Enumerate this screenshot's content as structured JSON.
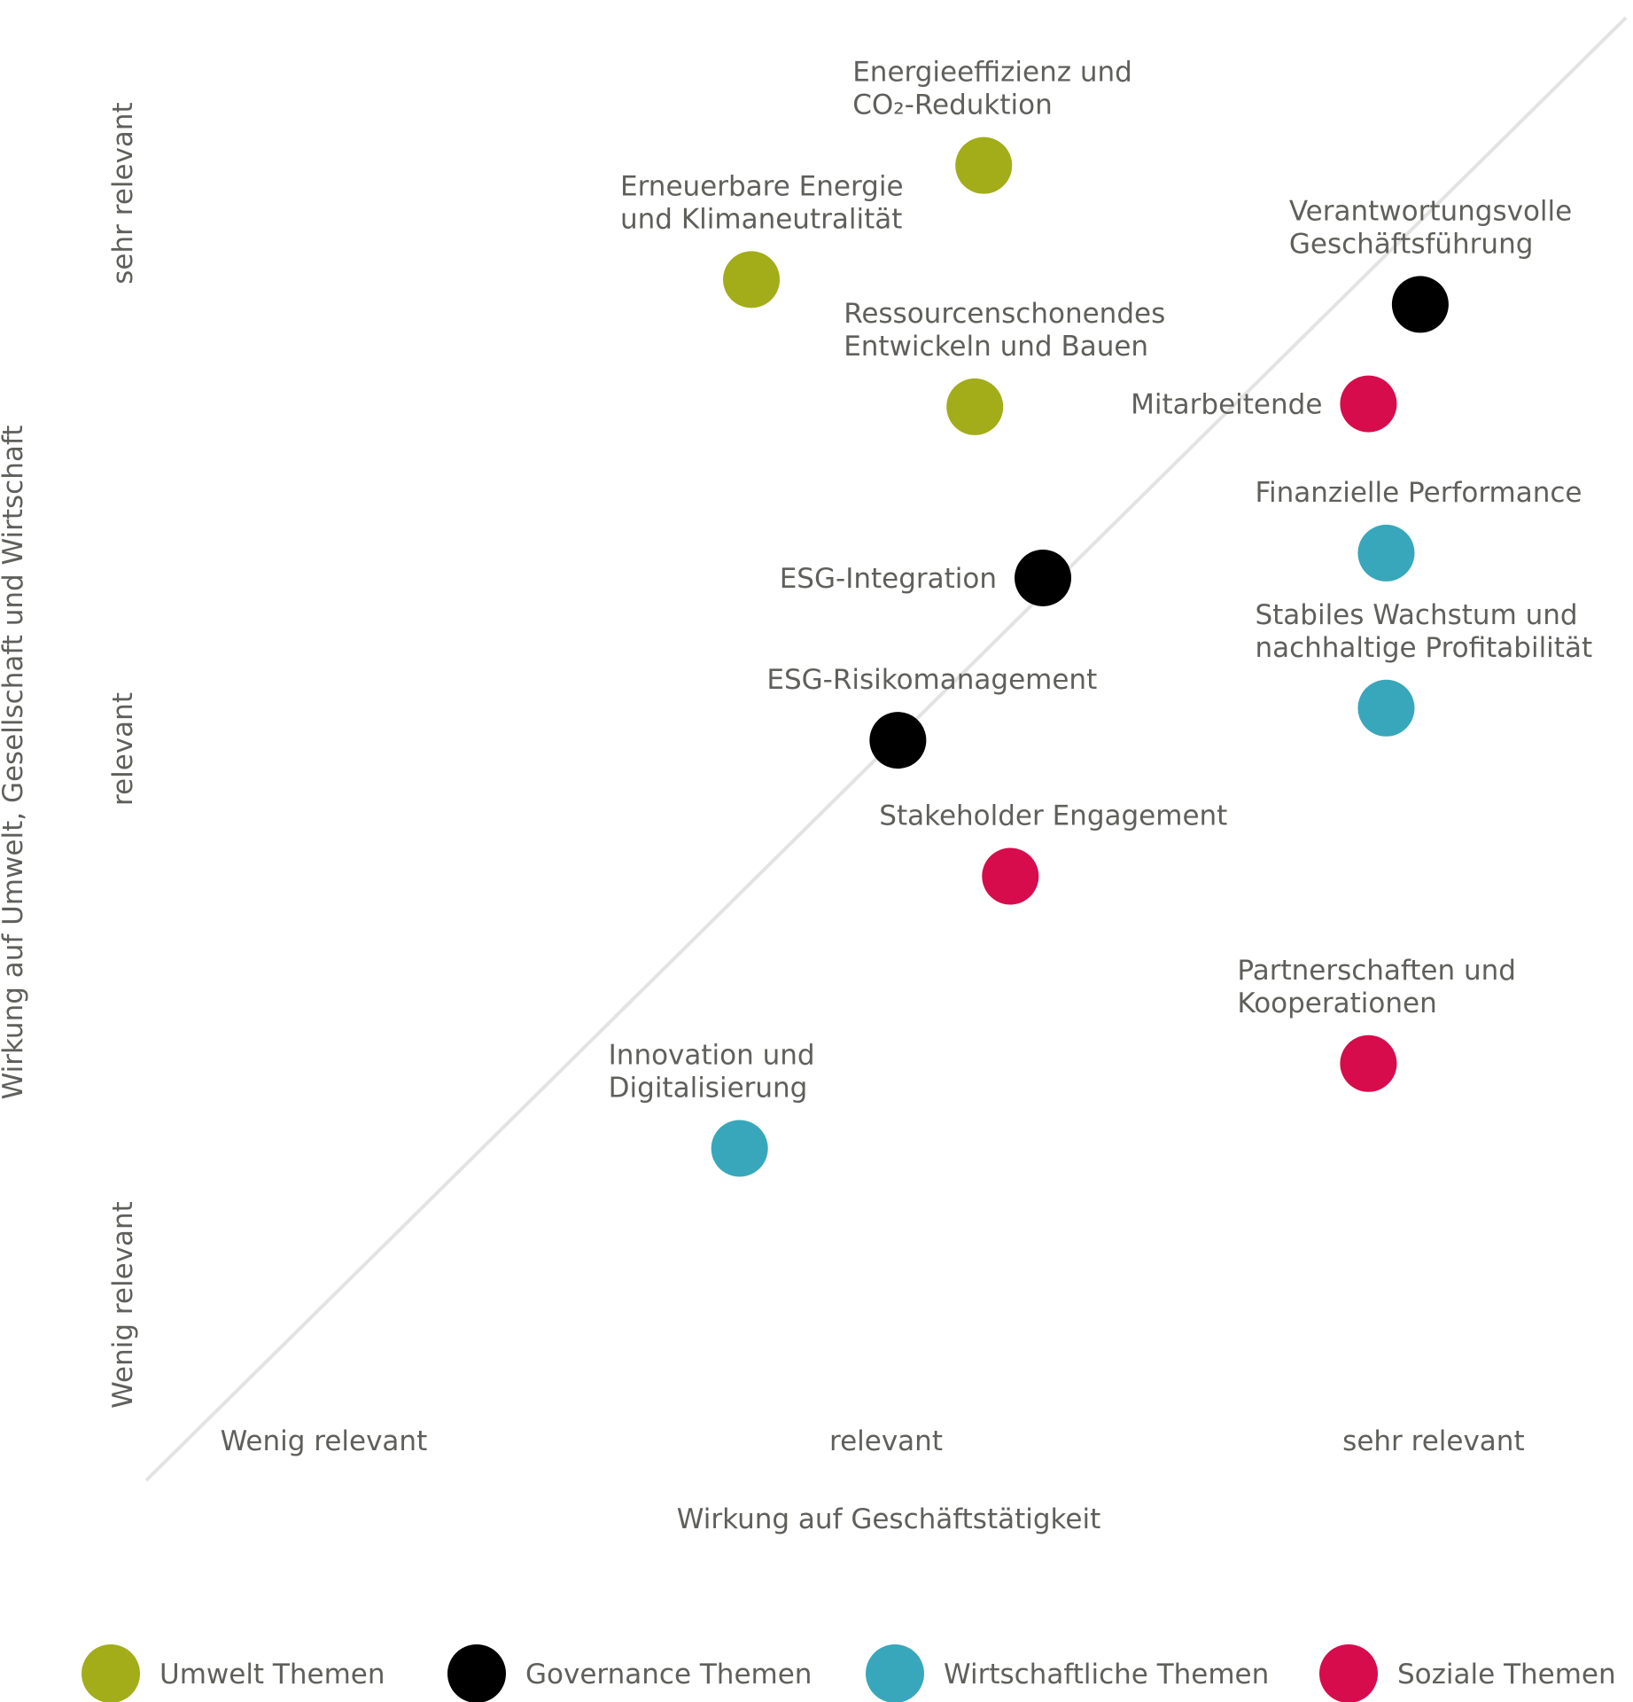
{
  "chart_data": {
    "type": "scatter",
    "title": "",
    "xlabel": "Wirkung auf Geschäftstätigkeit",
    "ylabel": "Wirkung auf Umwelt, Gesellschaft und Wirtschaft",
    "xlim": [
      0,
      100
    ],
    "ylim": [
      0,
      100
    ],
    "x_ticks": [
      {
        "label": "Wenig relevant",
        "value": 12
      },
      {
        "label": "relevant",
        "value": 50
      },
      {
        "label": "sehr relevant",
        "value": 87
      }
    ],
    "y_ticks": [
      {
        "label": "Wenig relevant",
        "value": 12
      },
      {
        "label": "relevant",
        "value": 50
      },
      {
        "label": "sehr relevant",
        "value": 88
      }
    ],
    "reference_line": "diagonal",
    "legend_placement": "bottom",
    "series": [
      {
        "name": "Umwelt Themen",
        "color": "#a2ad19",
        "points": [
          {
            "label": [
              "Energieeffizienz und",
              "CO₂-Reduktion"
            ],
            "x": 56.6,
            "y": 89.9,
            "label_anchor": "above"
          },
          {
            "label": [
              "Erneuerbare Energie",
              "und Klimaneutralität"
            ],
            "x": 40.9,
            "y": 82.1,
            "label_anchor": "above"
          },
          {
            "label": [
              "Ressourcenschonendes",
              "Entwickeln und Bauen"
            ],
            "x": 56.0,
            "y": 73.4,
            "label_anchor": "above"
          }
        ]
      },
      {
        "name": "Governance Themen",
        "color": "#000000",
        "points": [
          {
            "label": [
              "Verantwortungsvolle",
              "Geschäftsführung"
            ],
            "x": 86.1,
            "y": 80.4,
            "label_anchor": "above"
          },
          {
            "label": [
              "ESG-Integration"
            ],
            "x": 60.6,
            "y": 61.7,
            "label_anchor": "left"
          },
          {
            "label": [
              "ESG-Risikomanagement"
            ],
            "x": 50.8,
            "y": 50.6,
            "label_anchor": "above"
          }
        ]
      },
      {
        "name": "Wirtschaftliche Themen",
        "color": "#39a7bb",
        "points": [
          {
            "label": [
              "Finanzielle Performance"
            ],
            "x": 83.8,
            "y": 63.4,
            "label_anchor": "above"
          },
          {
            "label": [
              "Stabiles Wachstum und",
              "nachhaltige Profitabilität"
            ],
            "x": 83.8,
            "y": 52.8,
            "label_anchor": "above"
          },
          {
            "label": [
              "Innovation und",
              "Digitalisierung"
            ],
            "x": 40.1,
            "y": 22.7,
            "label_anchor": "above"
          }
        ]
      },
      {
        "name": "Soziale Themen",
        "color": "#d60c4c",
        "points": [
          {
            "label": [
              "Mitarbeitende"
            ],
            "x": 82.6,
            "y": 73.6,
            "label_anchor": "left"
          },
          {
            "label": [
              "Stakeholder Engagement"
            ],
            "x": 58.4,
            "y": 41.3,
            "label_anchor": "above"
          },
          {
            "label": [
              "Partnerschaften und",
              "Kooperationen"
            ],
            "x": 82.6,
            "y": 28.5,
            "label_anchor": "above"
          }
        ]
      }
    ]
  }
}
